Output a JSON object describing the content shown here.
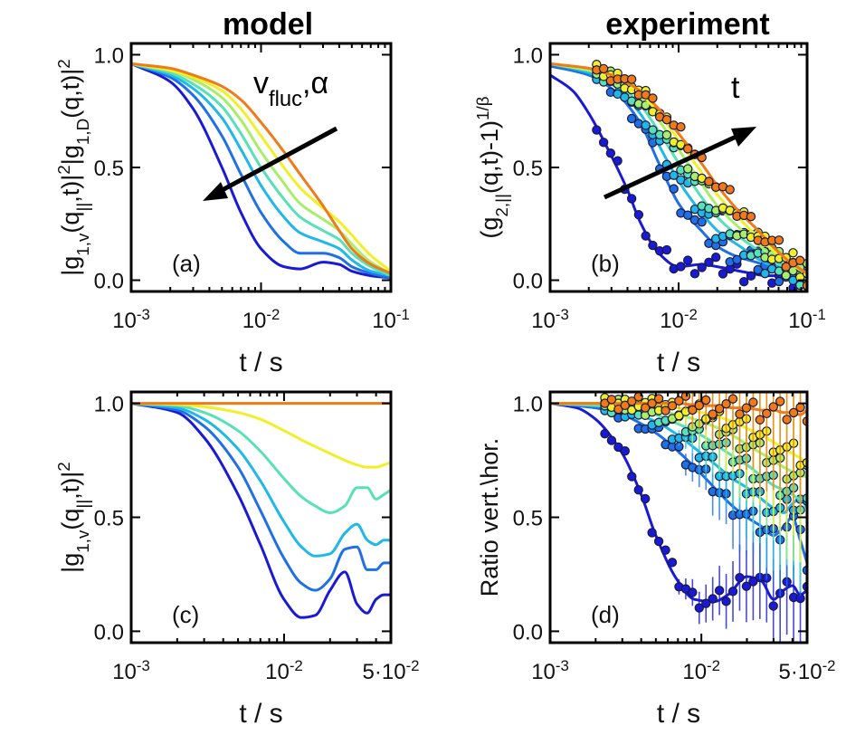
{
  "titles": {
    "left": "model",
    "right": "experiment"
  },
  "palette": [
    "#1a1ad6",
    "#1f6fe6",
    "#1fb8e8",
    "#58e0b6",
    "#a8ee6a",
    "#f0f02a",
    "#f07a18"
  ],
  "chart_data": [
    {
      "id": "a",
      "type": "line",
      "panel_label": "(a)",
      "ylabel": "|g_{1,v}(q_{||},t)|^2|g_{1,D}(q,t)|^2",
      "xlabel": "t / s",
      "xscale": "log",
      "xlim": [
        0.001,
        0.1
      ],
      "ylim": [
        -0.05,
        1.05
      ],
      "xticks": [
        {
          "v": 0.001,
          "base": "10",
          "exp": "-3"
        },
        {
          "v": 0.01,
          "base": "10",
          "exp": "-2"
        },
        {
          "v": 0.1,
          "base": "10",
          "exp": "-1"
        }
      ],
      "yticks": [
        {
          "v": 0.0,
          "label": "0.0"
        },
        {
          "v": 0.5,
          "label": "0.5"
        },
        {
          "v": 1.0,
          "label": "1.0"
        }
      ],
      "annotation": {
        "label": "v",
        "sub": "fluc",
        "tail": ",α"
      },
      "series": [
        {
          "x": [
            0.001,
            0.002,
            0.003,
            0.005,
            0.007,
            0.01,
            0.015,
            0.02,
            0.03,
            0.04,
            0.05,
            0.07,
            0.1
          ],
          "y": [
            0.96,
            0.88,
            0.76,
            0.5,
            0.3,
            0.14,
            0.06,
            0.05,
            0.08,
            0.07,
            0.04,
            0.02,
            0.01
          ]
        },
        {
          "x": [
            0.001,
            0.002,
            0.003,
            0.005,
            0.007,
            0.01,
            0.015,
            0.02,
            0.03,
            0.04,
            0.05,
            0.07,
            0.1
          ],
          "y": [
            0.96,
            0.9,
            0.82,
            0.64,
            0.47,
            0.3,
            0.17,
            0.12,
            0.12,
            0.1,
            0.06,
            0.03,
            0.01
          ]
        },
        {
          "x": [
            0.001,
            0.002,
            0.003,
            0.005,
            0.007,
            0.01,
            0.015,
            0.02,
            0.03,
            0.04,
            0.05,
            0.07,
            0.1
          ],
          "y": [
            0.96,
            0.91,
            0.85,
            0.72,
            0.58,
            0.42,
            0.28,
            0.21,
            0.17,
            0.14,
            0.09,
            0.04,
            0.02
          ]
        },
        {
          "x": [
            0.001,
            0.002,
            0.003,
            0.005,
            0.007,
            0.01,
            0.015,
            0.02,
            0.03,
            0.04,
            0.05,
            0.07,
            0.1
          ],
          "y": [
            0.96,
            0.92,
            0.87,
            0.77,
            0.65,
            0.5,
            0.36,
            0.28,
            0.22,
            0.18,
            0.12,
            0.06,
            0.02
          ]
        },
        {
          "x": [
            0.001,
            0.002,
            0.003,
            0.005,
            0.007,
            0.01,
            0.015,
            0.02,
            0.03,
            0.04,
            0.05,
            0.07,
            0.1
          ],
          "y": [
            0.96,
            0.93,
            0.89,
            0.81,
            0.71,
            0.57,
            0.43,
            0.34,
            0.27,
            0.22,
            0.16,
            0.08,
            0.03
          ]
        },
        {
          "x": [
            0.001,
            0.002,
            0.003,
            0.005,
            0.007,
            0.01,
            0.015,
            0.02,
            0.03,
            0.04,
            0.05,
            0.07,
            0.1
          ],
          "y": [
            0.96,
            0.93,
            0.9,
            0.84,
            0.76,
            0.64,
            0.5,
            0.41,
            0.32,
            0.26,
            0.2,
            0.11,
            0.04
          ]
        },
        {
          "x": [
            0.001,
            0.002,
            0.003,
            0.005,
            0.007,
            0.01,
            0.015,
            0.02,
            0.03,
            0.04,
            0.05,
            0.07,
            0.1
          ],
          "y": [
            0.96,
            0.94,
            0.91,
            0.86,
            0.8,
            0.7,
            0.57,
            0.47,
            0.33,
            0.22,
            0.14,
            0.07,
            0.03
          ]
        }
      ]
    },
    {
      "id": "b",
      "type": "scatter",
      "panel_label": "(b)",
      "ylabel": "(g_{2,||}(q,t)-1)^{1/β}",
      "xlabel": "t / s",
      "xscale": "log",
      "xlim": [
        0.001,
        0.1
      ],
      "ylim": [
        -0.05,
        1.05
      ],
      "xticks": [
        {
          "v": 0.001,
          "base": "10",
          "exp": "-3"
        },
        {
          "v": 0.01,
          "base": "10",
          "exp": "-2"
        },
        {
          "v": 0.1,
          "base": "10",
          "exp": "-1"
        }
      ],
      "yticks": [
        {
          "v": 0.0,
          "label": "0.0"
        },
        {
          "v": 0.5,
          "label": "0.5"
        },
        {
          "v": 1.0,
          "label": "1.0"
        }
      ],
      "annotation": {
        "label": "t"
      },
      "series": [
        {
          "x": [
            0.001,
            0.0015,
            0.002,
            0.003,
            0.004,
            0.005,
            0.007,
            0.01,
            0.015,
            0.02,
            0.03,
            0.05,
            0.07,
            0.1
          ],
          "y": [
            0.91,
            0.84,
            0.74,
            0.55,
            0.4,
            0.26,
            0.12,
            0.06,
            0.07,
            0.06,
            0.04,
            0.02,
            0.02,
            0.01
          ]
        },
        {
          "x": [
            0.001,
            0.002,
            0.003,
            0.005,
            0.007,
            0.01,
            0.015,
            0.02,
            0.03,
            0.04,
            0.05,
            0.07,
            0.1
          ],
          "y": [
            0.95,
            0.91,
            0.85,
            0.7,
            0.52,
            0.34,
            0.22,
            0.15,
            0.1,
            0.08,
            0.06,
            0.03,
            0.01
          ]
        },
        {
          "x": [
            0.001,
            0.002,
            0.003,
            0.005,
            0.007,
            0.01,
            0.015,
            0.02,
            0.03,
            0.04,
            0.05,
            0.07,
            0.1
          ],
          "y": [
            0.96,
            0.92,
            0.87,
            0.74,
            0.6,
            0.44,
            0.3,
            0.22,
            0.15,
            0.1,
            0.07,
            0.04,
            0.01
          ]
        },
        {
          "x": [
            0.001,
            0.002,
            0.003,
            0.005,
            0.007,
            0.01,
            0.015,
            0.02,
            0.03,
            0.04,
            0.05,
            0.07,
            0.1
          ],
          "y": [
            0.96,
            0.93,
            0.89,
            0.78,
            0.66,
            0.52,
            0.37,
            0.28,
            0.19,
            0.14,
            0.1,
            0.05,
            0.02
          ]
        },
        {
          "x": [
            0.001,
            0.002,
            0.003,
            0.005,
            0.007,
            0.01,
            0.015,
            0.02,
            0.03,
            0.04,
            0.05,
            0.07,
            0.1
          ],
          "y": [
            0.96,
            0.93,
            0.9,
            0.81,
            0.71,
            0.58,
            0.43,
            0.33,
            0.23,
            0.17,
            0.12,
            0.07,
            0.02
          ]
        },
        {
          "x": [
            0.001,
            0.002,
            0.003,
            0.005,
            0.007,
            0.01,
            0.015,
            0.02,
            0.03,
            0.04,
            0.05,
            0.07,
            0.1
          ],
          "y": [
            0.96,
            0.94,
            0.91,
            0.83,
            0.74,
            0.62,
            0.48,
            0.38,
            0.27,
            0.2,
            0.15,
            0.08,
            0.03
          ]
        },
        {
          "x": [
            0.001,
            0.002,
            0.003,
            0.005,
            0.007,
            0.01,
            0.015,
            0.02,
            0.03,
            0.04,
            0.05,
            0.07,
            0.1
          ],
          "y": [
            0.96,
            0.94,
            0.91,
            0.84,
            0.76,
            0.65,
            0.52,
            0.42,
            0.3,
            0.23,
            0.17,
            0.09,
            0.03
          ]
        }
      ]
    },
    {
      "id": "c",
      "type": "line",
      "panel_label": "(c)",
      "ylabel": "|g_{1,v}(q_{||},t)|^2",
      "xlabel": "t / s",
      "xscale": "log",
      "xlim": [
        0.001,
        0.05
      ],
      "ylim": [
        -0.05,
        1.05
      ],
      "xticks": [
        {
          "v": 0.001,
          "base": "10",
          "exp": "-3"
        },
        {
          "v": 0.01,
          "base": "10",
          "exp": "-2"
        },
        {
          "v": 0.05,
          "label": "5·10",
          "exp": "-2"
        }
      ],
      "yticks": [
        {
          "v": 0.0,
          "label": "0.0"
        },
        {
          "v": 0.5,
          "label": "0.5"
        },
        {
          "v": 1.0,
          "label": "1.0"
        }
      ],
      "series": [
        {
          "x": [
            0.001,
            0.002,
            0.003,
            0.005,
            0.007,
            0.01,
            0.013,
            0.016,
            0.02,
            0.025,
            0.03,
            0.035,
            0.04,
            0.045,
            0.05
          ],
          "y": [
            1.0,
            0.96,
            0.85,
            0.6,
            0.38,
            0.14,
            0.06,
            0.07,
            0.18,
            0.26,
            0.12,
            0.08,
            0.14,
            0.16,
            0.16
          ]
        },
        {
          "x": [
            0.001,
            0.002,
            0.003,
            0.005,
            0.007,
            0.01,
            0.013,
            0.016,
            0.02,
            0.025,
            0.03,
            0.035,
            0.04,
            0.045,
            0.05
          ],
          "y": [
            1.0,
            0.97,
            0.9,
            0.72,
            0.53,
            0.32,
            0.21,
            0.18,
            0.23,
            0.36,
            0.37,
            0.27,
            0.27,
            0.3,
            0.3
          ]
        },
        {
          "x": [
            0.001,
            0.002,
            0.003,
            0.005,
            0.007,
            0.01,
            0.013,
            0.016,
            0.02,
            0.025,
            0.03,
            0.035,
            0.04,
            0.045,
            0.05
          ],
          "y": [
            1.0,
            0.98,
            0.93,
            0.8,
            0.66,
            0.48,
            0.37,
            0.33,
            0.34,
            0.43,
            0.47,
            0.4,
            0.38,
            0.4,
            0.4
          ]
        },
        {
          "x": [
            0.001,
            0.002,
            0.003,
            0.005,
            0.007,
            0.01,
            0.013,
            0.016,
            0.02,
            0.025,
            0.03,
            0.035,
            0.04,
            0.045,
            0.05
          ],
          "y": [
            1.0,
            0.99,
            0.96,
            0.88,
            0.79,
            0.67,
            0.59,
            0.55,
            0.52,
            0.55,
            0.63,
            0.63,
            0.58,
            0.6,
            0.62
          ]
        },
        {
          "x": [
            0.001,
            0.002,
            0.003,
            0.005,
            0.007,
            0.01,
            0.013,
            0.016,
            0.02,
            0.025,
            0.03,
            0.035,
            0.04,
            0.045,
            0.05
          ],
          "y": [
            1.0,
            0.995,
            0.985,
            0.96,
            0.93,
            0.88,
            0.84,
            0.81,
            0.78,
            0.75,
            0.73,
            0.72,
            0.72,
            0.73,
            0.74
          ]
        },
        {
          "x": [
            0.001,
            0.002,
            0.005,
            0.01,
            0.02,
            0.05
          ],
          "y": [
            1.0,
            1.0,
            1.0,
            1.0,
            1.0,
            1.0
          ]
        }
      ]
    },
    {
      "id": "d",
      "type": "scatter",
      "panel_label": "(d)",
      "ylabel": "Ratio vert.\\hor.",
      "xlabel": "t / s",
      "xscale": "log",
      "xlim": [
        0.001,
        0.05
      ],
      "ylim": [
        -0.05,
        1.05
      ],
      "xticks": [
        {
          "v": 0.001,
          "base": "10",
          "exp": "-3"
        },
        {
          "v": 0.01,
          "base": "10",
          "exp": "-2"
        },
        {
          "v": 0.05,
          "label": "5·10",
          "exp": "-2"
        }
      ],
      "yticks": [
        {
          "v": 0.0,
          "label": "0.0"
        },
        {
          "v": 0.5,
          "label": "0.5"
        },
        {
          "v": 1.0,
          "label": "1.0"
        }
      ],
      "series": [
        {
          "x": [
            0.001,
            0.0015,
            0.002,
            0.003,
            0.004,
            0.005,
            0.007,
            0.009,
            0.012,
            0.015,
            0.02,
            0.025,
            0.03,
            0.035,
            0.04,
            0.045,
            0.05
          ],
          "y": [
            1.0,
            0.98,
            0.93,
            0.78,
            0.6,
            0.42,
            0.22,
            0.14,
            0.13,
            0.16,
            0.24,
            0.22,
            0.14,
            0.18,
            0.2,
            0.16,
            0.18
          ]
        },
        {
          "x": [
            0.001,
            0.002,
            0.003,
            0.005,
            0.007,
            0.01,
            0.013,
            0.016,
            0.02,
            0.025,
            0.03,
            0.035,
            0.04,
            0.045,
            0.05
          ],
          "y": [
            1.0,
            0.98,
            0.95,
            0.87,
            0.79,
            0.69,
            0.61,
            0.55,
            0.5,
            0.46,
            0.42,
            0.46,
            0.5,
            0.4,
            0.3
          ]
        },
        {
          "x": [
            0.001,
            0.002,
            0.003,
            0.005,
            0.007,
            0.01,
            0.013,
            0.016,
            0.02,
            0.025,
            0.03,
            0.035,
            0.04,
            0.045,
            0.05
          ],
          "y": [
            1.0,
            0.99,
            0.97,
            0.92,
            0.86,
            0.78,
            0.72,
            0.67,
            0.63,
            0.58,
            0.54,
            0.52,
            0.56,
            0.58,
            0.54
          ]
        },
        {
          "x": [
            0.001,
            0.002,
            0.003,
            0.005,
            0.007,
            0.01,
            0.013,
            0.016,
            0.02,
            0.025,
            0.03,
            0.035,
            0.04,
            0.045,
            0.05
          ],
          "y": [
            1.0,
            0.99,
            0.98,
            0.95,
            0.91,
            0.86,
            0.81,
            0.77,
            0.73,
            0.68,
            0.64,
            0.62,
            0.6,
            0.58,
            0.6
          ]
        },
        {
          "x": [
            0.001,
            0.002,
            0.003,
            0.005,
            0.007,
            0.01,
            0.013,
            0.016,
            0.02,
            0.025,
            0.03,
            0.035,
            0.04,
            0.045,
            0.05
          ],
          "y": [
            1.0,
            1.0,
            0.99,
            0.97,
            0.95,
            0.92,
            0.89,
            0.86,
            0.82,
            0.78,
            0.75,
            0.72,
            0.7,
            0.68,
            0.68
          ]
        },
        {
          "x": [
            0.001,
            0.002,
            0.003,
            0.005,
            0.007,
            0.01,
            0.013,
            0.016,
            0.02,
            0.025,
            0.03,
            0.035,
            0.04,
            0.045,
            0.05
          ],
          "y": [
            1.0,
            1.0,
            1.0,
            0.99,
            0.98,
            0.96,
            0.94,
            0.92,
            0.89,
            0.86,
            0.83,
            0.8,
            0.78,
            0.76,
            0.74
          ]
        },
        {
          "x": [
            0.001,
            0.002,
            0.005,
            0.007,
            0.01,
            0.013,
            0.016,
            0.02,
            0.025,
            0.03,
            0.035,
            0.04,
            0.045,
            0.05
          ],
          "y": [
            1.0,
            1.0,
            1.0,
            1.0,
            0.99,
            0.99,
            0.98,
            0.98,
            0.97,
            0.97,
            0.96,
            0.96,
            0.95,
            0.97
          ]
        }
      ]
    }
  ]
}
